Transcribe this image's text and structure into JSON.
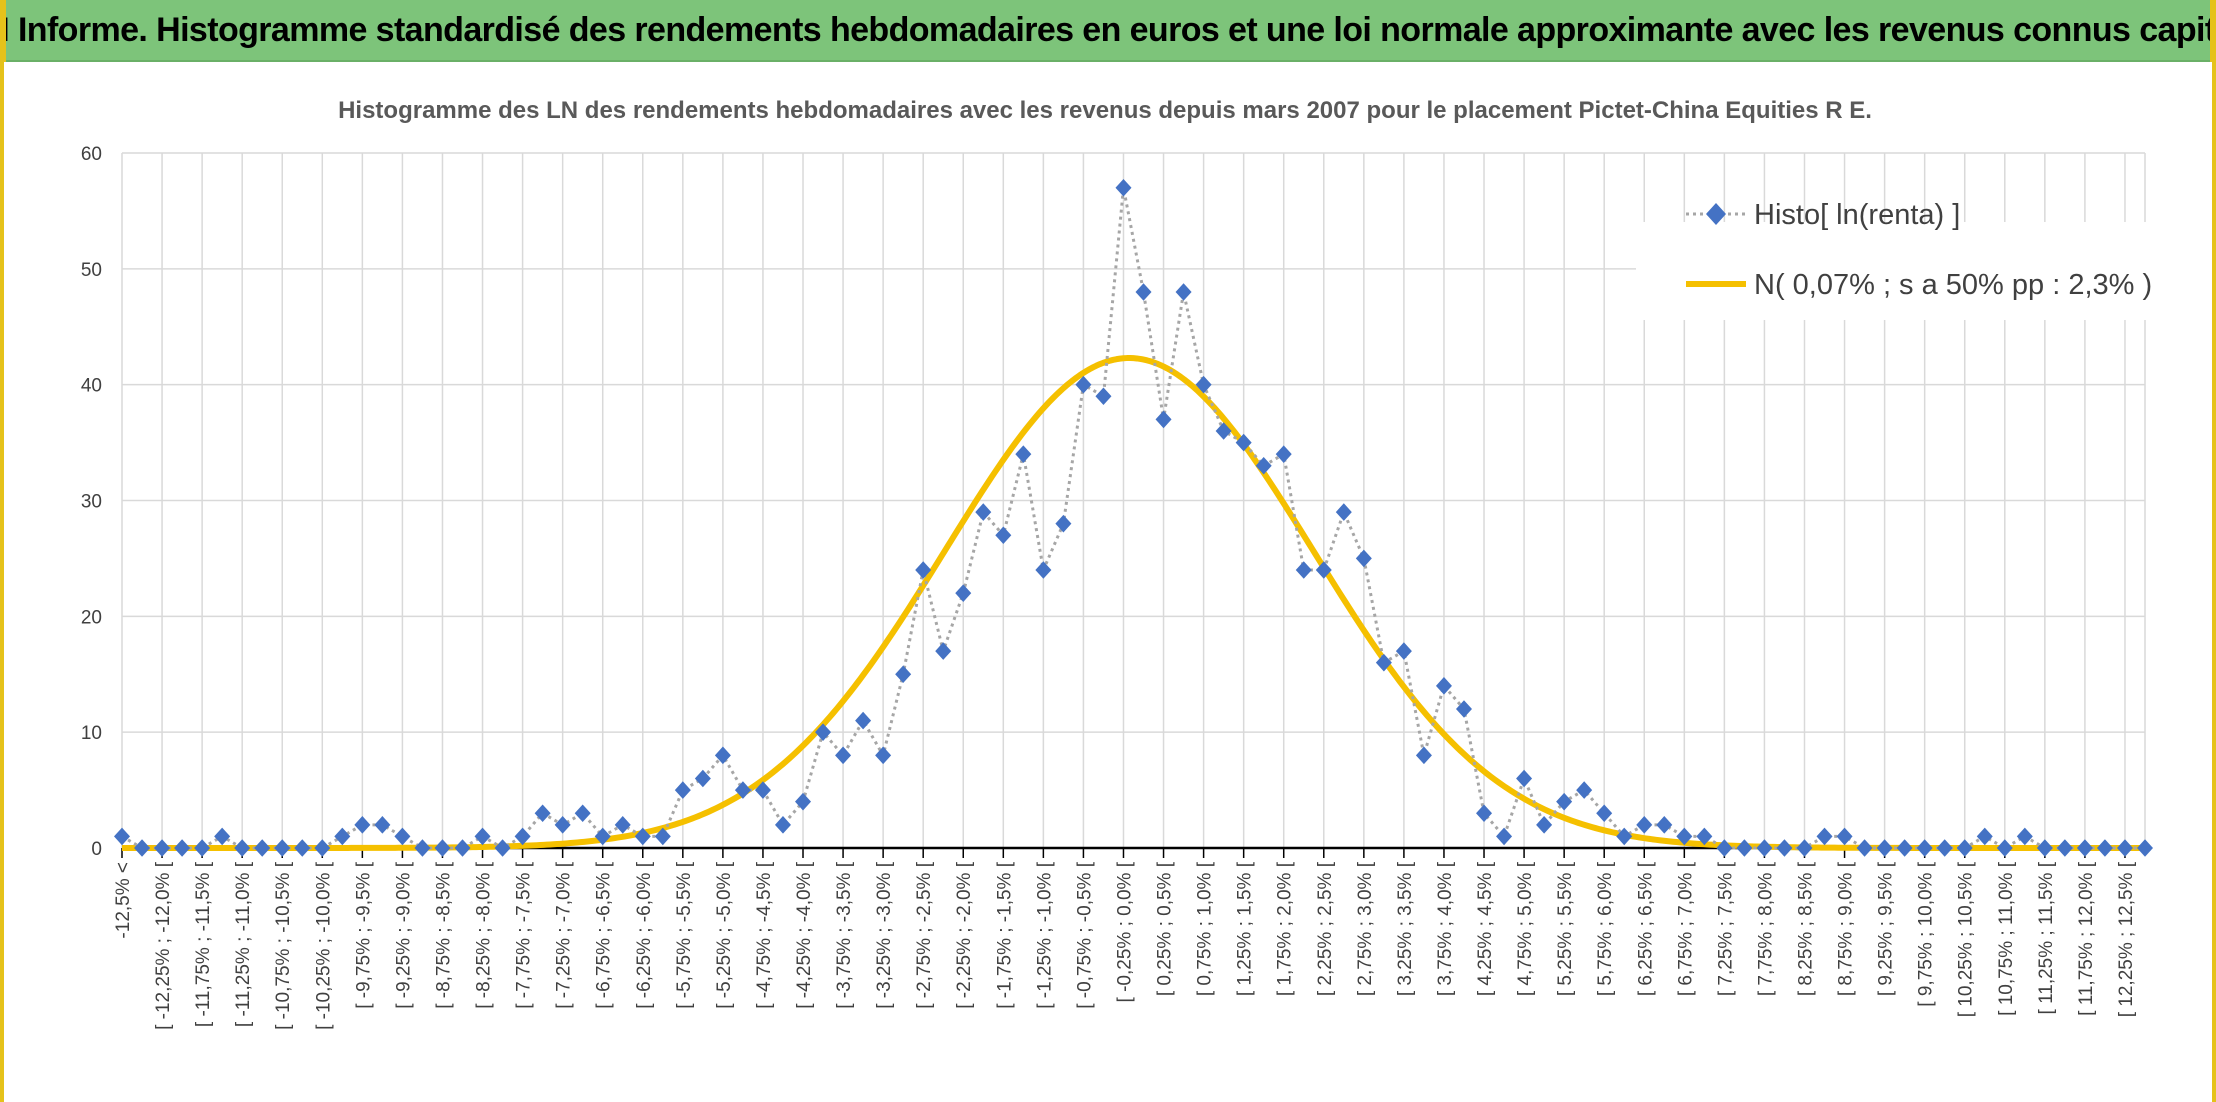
{
  "header": {
    "title": "ADAM Informe. Histogramme standardisé des rendements hebdomadaires en euros et une loi normale approximante avec les revenus connus capitalisés"
  },
  "chart_data": {
    "type": "line",
    "title": "Histogramme des LN des rendements hebdomadaires avec les revenus depuis mars 2007 pour le placement Pictet-China  Equities R E.",
    "xlabel": "",
    "ylabel": "",
    "ylim": [
      0,
      60
    ],
    "y_ticks": [
      "0",
      "10",
      "20",
      "30",
      "40",
      "50",
      "60"
    ],
    "grid": true,
    "legend_position": "top-right",
    "categories": [
      "-12,5% <",
      "[ -12,25% ; -12,0% [",
      "[ -11,75% ; -11,5% [",
      "[ -11,25% ; -11,0% [",
      "[ -10,75% ; -10,5% [",
      "[ -10,25% ; -10,0% [",
      "[ -9,75% ; -9,5% [",
      "[ -9,25% ; -9,0% [",
      "[ -8,75% ; -8,5% [",
      "[ -8,25% ; -8,0% [",
      "[ -7,75% ; -7,5% [",
      "[ -7,25% ; -7,0% [",
      "[ -6,75% ; -6,5% [",
      "[ -6,25% ; -6,0% [",
      "[ -5,75% ; -5,5% [",
      "[ -5,25% ; -5,0% [",
      "[ -4,75% ; -4,5% [",
      "[ -4,25% ; -4,0% [",
      "[ -3,75% ; -3,5% [",
      "[ -3,25% ; -3,0% [",
      "[ -2,75% ; -2,5% [",
      "[ -2,25% ; -2,0% [",
      "[ -1,75% ; -1,5% [",
      "[ -1,25% ; -1,0% [",
      "[ -0,75% ; -0,5% [",
      "[ -0,25% ; 0,0% [",
      "[ 0,25% ; 0,5% [",
      "[ 0,75% ; 1,0% [",
      "[ 1,25% ; 1,5% [",
      "[ 1,75% ; 2,0% [",
      "[ 2,25% ; 2,5% [",
      "[ 2,75% ; 3,0% [",
      "[ 3,25% ; 3,5% [",
      "[ 3,75% ; 4,0% [",
      "[ 4,25% ; 4,5% [",
      "[ 4,75% ; 5,0% [",
      "[ 5,25% ; 5,5% [",
      "[ 5,75% ; 6,0% [",
      "[ 6,25% ; 6,5% [",
      "[ 6,75% ; 7,0% [",
      "[ 7,25% ; 7,5% [",
      "[ 7,75% ; 8,0% [",
      "[ 8,25% ; 8,5% [",
      "[ 8,75% ; 9,0% [",
      "[ 9,25% ; 9,5% [",
      "[ 9,75% ; 10,0% [",
      "[ 10,25% ; 10,5% [",
      "[ 10,75% ; 11,0% [",
      "[ 11,25% ; 11,5% [",
      "[ 11,75% ; 12,0% [",
      "[ 12,25% ; 12,5% ["
    ],
    "x": [
      -12.5,
      -12.25,
      -12.0,
      -11.75,
      -11.5,
      -11.25,
      -11.0,
      -10.75,
      -10.5,
      -10.25,
      -10.0,
      -9.75,
      -9.5,
      -9.25,
      -9.0,
      -8.75,
      -8.5,
      -8.25,
      -8.0,
      -7.75,
      -7.5,
      -7.25,
      -7.0,
      -6.75,
      -6.5,
      -6.25,
      -6.0,
      -5.75,
      -5.5,
      -5.25,
      -5.0,
      -4.75,
      -4.5,
      -4.25,
      -4.0,
      -3.75,
      -3.5,
      -3.25,
      -3.0,
      -2.75,
      -2.5,
      -2.25,
      -2.0,
      -1.75,
      -1.5,
      -1.25,
      -1.0,
      -0.75,
      -0.5,
      -0.25,
      0.0,
      0.25,
      0.5,
      0.75,
      1.0,
      1.25,
      1.5,
      1.75,
      2.0,
      2.25,
      2.5,
      2.75,
      3.0,
      3.25,
      3.5,
      3.75,
      4.0,
      4.25,
      4.5,
      4.75,
      5.0,
      5.25,
      5.5,
      5.75,
      6.0,
      6.25,
      6.5,
      6.75,
      7.0,
      7.25,
      7.5,
      7.75,
      8.0,
      8.25,
      8.5,
      8.75,
      9.0,
      9.25,
      9.5,
      9.75,
      10.0,
      10.25,
      10.5,
      10.75,
      11.0,
      11.25,
      11.5,
      11.75,
      12.0,
      12.25,
      12.5,
      12.75
    ],
    "series": [
      {
        "name": "Histo[ ln(renta) ]",
        "color": "#4472c4",
        "line_color": "#a6a6a6",
        "marker": "diamond",
        "values": [
          1,
          0,
          0,
          0,
          0,
          1,
          0,
          0,
          0,
          0,
          0,
          1,
          2,
          2,
          1,
          0,
          0,
          0,
          1,
          0,
          1,
          3,
          2,
          3,
          1,
          2,
          1,
          1,
          5,
          6,
          8,
          5,
          5,
          2,
          4,
          10,
          8,
          11,
          8,
          15,
          24,
          17,
          22,
          29,
          27,
          34,
          24,
          28,
          40,
          39,
          57,
          48,
          37,
          48,
          40,
          36,
          35,
          33,
          34,
          24,
          24,
          29,
          25,
          16,
          17,
          8,
          14,
          12,
          3,
          1,
          6,
          2,
          4,
          5,
          3,
          1,
          2,
          2,
          1,
          1,
          0,
          0,
          0,
          0,
          0,
          1,
          1,
          0,
          0,
          0,
          0,
          0,
          0,
          1,
          0,
          1,
          0,
          0,
          0,
          0,
          0,
          0
        ]
      },
      {
        "name": "N( 0,07% ; s a 50% pp : 2,3% )",
        "color": "#f5c000",
        "distribution": "normal",
        "mean": 0.07,
        "sd": 2.3,
        "peak": 42.3
      }
    ]
  }
}
